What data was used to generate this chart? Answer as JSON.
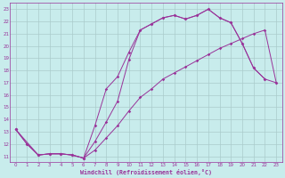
{
  "bg_color": "#c8ecec",
  "grid_color": "#aacccc",
  "line_color": "#993399",
  "xlim": [
    -0.5,
    23.5
  ],
  "ylim": [
    10.5,
    23.5
  ],
  "xticks": [
    0,
    1,
    2,
    3,
    4,
    5,
    6,
    7,
    8,
    9,
    10,
    11,
    12,
    13,
    14,
    15,
    16,
    17,
    18,
    19,
    20,
    21,
    22,
    23
  ],
  "yticks": [
    11,
    12,
    13,
    14,
    15,
    16,
    17,
    18,
    19,
    20,
    21,
    22,
    23
  ],
  "xlabel": "Windchill (Refroidissement éolien,°C)",
  "curve1_x": [
    0,
    1,
    2,
    3,
    4,
    5,
    6,
    7,
    8,
    9,
    10,
    11,
    12,
    13,
    14,
    15,
    16,
    17,
    18,
    19,
    20,
    21,
    22
  ],
  "curve1_y": [
    13.2,
    12.0,
    11.1,
    11.2,
    11.2,
    11.1,
    10.85,
    12.2,
    13.8,
    15.5,
    18.9,
    21.3,
    21.8,
    22.3,
    22.5,
    22.2,
    22.5,
    23.0,
    22.3,
    21.9,
    20.2,
    18.2,
    17.3
  ],
  "curve2_x": [
    0,
    2,
    3,
    4,
    5,
    6,
    7,
    8,
    9,
    10,
    11,
    12,
    13,
    14,
    15,
    16,
    17,
    18,
    19,
    20,
    21,
    22,
    23
  ],
  "curve2_y": [
    13.2,
    11.1,
    11.2,
    11.2,
    11.1,
    10.85,
    13.5,
    16.5,
    17.5,
    19.5,
    21.3,
    21.8,
    22.3,
    22.5,
    22.2,
    22.5,
    23.0,
    22.3,
    21.9,
    20.2,
    18.2,
    17.3,
    17.0
  ],
  "curve3_x": [
    0,
    1,
    2,
    3,
    4,
    5,
    6,
    7,
    8,
    9,
    10,
    11,
    12,
    13,
    14,
    15,
    16,
    17,
    18,
    19,
    20,
    21,
    22,
    23
  ],
  "curve3_y": [
    13.2,
    12.0,
    11.1,
    11.2,
    11.2,
    11.1,
    10.85,
    11.5,
    12.5,
    13.5,
    14.7,
    15.8,
    16.5,
    17.3,
    17.8,
    18.3,
    18.8,
    19.3,
    19.8,
    20.2,
    20.6,
    21.0,
    21.3,
    17.0
  ]
}
